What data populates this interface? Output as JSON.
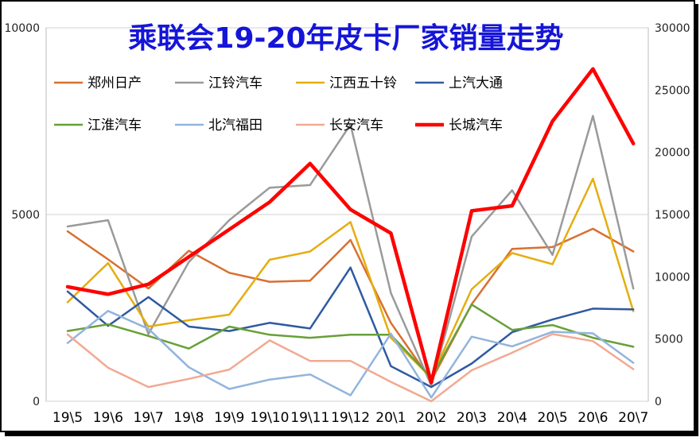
{
  "chart_data": {
    "type": "line",
    "title": "乘联会19-20年皮卡厂家销量走势",
    "categories": [
      "19\\5",
      "19\\6",
      "19\\7",
      "19\\8",
      "19\\9",
      "19\\10",
      "19\\11",
      "19\\12",
      "20\\1",
      "20\\2",
      "20\\3",
      "20\\4",
      "20\\5",
      "20\\6",
      "20\\7"
    ],
    "left_axis": {
      "ylim": [
        0,
        10000
      ],
      "ticks": [
        "0",
        "5000",
        "10000"
      ],
      "tick_values": [
        0,
        5000,
        10000
      ]
    },
    "right_axis": {
      "ylim": [
        0,
        30000
      ],
      "ticks": [
        "0",
        "5000",
        "10000",
        "15000",
        "20000",
        "25000",
        "30000"
      ],
      "tick_values": [
        0,
        5000,
        10000,
        15000,
        20000,
        25000,
        30000
      ]
    },
    "legend_position": "top",
    "series": [
      {
        "name": "郑州日产",
        "color": "#d8702f",
        "width": 2.5,
        "axis": "left",
        "values": [
          4550,
          3800,
          3020,
          4030,
          3440,
          3200,
          3230,
          4320,
          2100,
          550,
          2600,
          4080,
          4130,
          4620,
          4010
        ]
      },
      {
        "name": "江铃汽车",
        "color": "#9a9a9a",
        "width": 2.5,
        "axis": "left",
        "values": [
          4680,
          4850,
          1800,
          3730,
          4850,
          5720,
          5790,
          7410,
          2900,
          420,
          4410,
          5650,
          3920,
          7640,
          3020
        ]
      },
      {
        "name": "江西五十铃",
        "color": "#e5ad10",
        "width": 2.5,
        "axis": "left",
        "values": [
          2650,
          3700,
          2000,
          2170,
          2320,
          3790,
          4010,
          4800,
          1700,
          630,
          3000,
          3970,
          3670,
          5960,
          2410
        ]
      },
      {
        "name": "上汽大通",
        "color": "#2f5aa0",
        "width": 2.5,
        "axis": "left",
        "values": [
          2940,
          2020,
          2790,
          2000,
          1880,
          2100,
          1950,
          3580,
          940,
          380,
          1010,
          1850,
          2190,
          2480,
          2460
        ]
      },
      {
        "name": "江淮汽车",
        "color": "#67a038",
        "width": 2.5,
        "axis": "left",
        "values": [
          1880,
          2060,
          1750,
          1410,
          2000,
          1780,
          1700,
          1780,
          1780,
          630,
          2590,
          1910,
          2040,
          1700,
          1460
        ]
      },
      {
        "name": "北汽福田",
        "color": "#92b4dd",
        "width": 2.5,
        "axis": "left",
        "values": [
          1560,
          2420,
          1940,
          910,
          330,
          580,
          720,
          160,
          1810,
          100,
          1730,
          1470,
          1860,
          1820,
          1030
        ]
      },
      {
        "name": "长安汽车",
        "color": "#f2a992",
        "width": 2.5,
        "axis": "left",
        "values": [
          1790,
          900,
          380,
          600,
          850,
          1630,
          1080,
          1080,
          520,
          0,
          830,
          1300,
          1800,
          1610,
          860
        ]
      },
      {
        "name": "长城汽车",
        "color": "#ff0000",
        "width": 4.5,
        "axis": "right",
        "values": [
          9200,
          8600,
          9400,
          11600,
          13800,
          16000,
          19100,
          15400,
          13500,
          1500,
          15300,
          15700,
          22500,
          26700,
          20700
        ]
      }
    ]
  }
}
